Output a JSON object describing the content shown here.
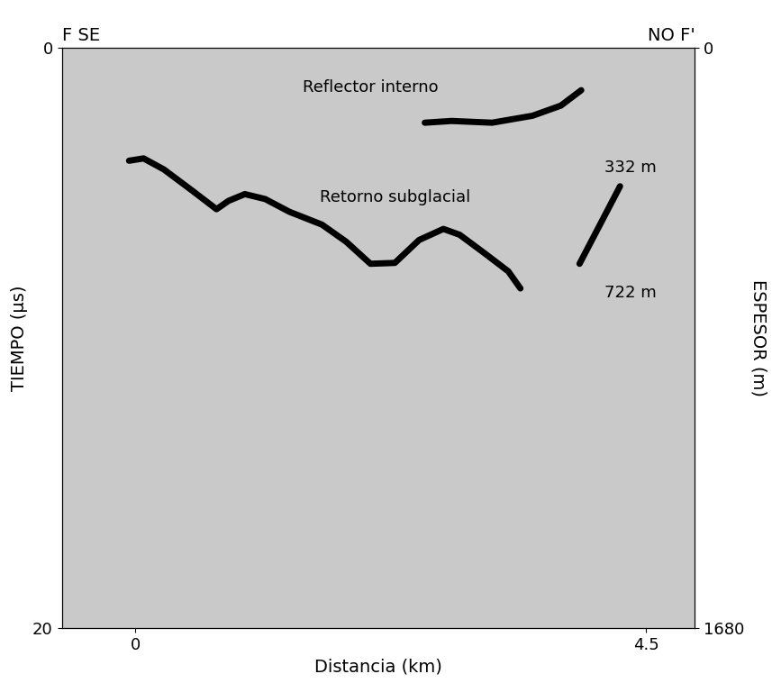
{
  "chart_data": {
    "type": "line",
    "left_title": "F SE",
    "right_title": "NO F'",
    "x_label": "Distancia (km)",
    "y_label": "TIEMPO (µs)",
    "y2_label": "ESPESOR (m)",
    "xlim": [
      -0.65,
      4.93
    ],
    "xticks": [
      0,
      4.5
    ],
    "ylim": [
      20,
      0
    ],
    "yticks": [
      0,
      20
    ],
    "y2lim": [
      1680,
      0
    ],
    "y2ticks": [
      0,
      1680
    ],
    "grid": false,
    "series": [
      {
        "color": "#000000",
        "x": [
          2.55,
          2.786,
          3.143,
          3.5,
          3.75,
          3.929
        ],
        "values": [
          2.58,
          2.52,
          2.58,
          2.34,
          1.99,
          1.46
        ]
      },
      {
        "color": "#000000",
        "x": [
          -0.057,
          0.071,
          0.25,
          0.5,
          0.714,
          0.821,
          0.964,
          1.143,
          1.357,
          1.643,
          1.857,
          2.071,
          2.286,
          2.5,
          2.714,
          2.857,
          3.071,
          3.286,
          3.393
        ],
        "values": [
          3.89,
          3.81,
          4.19,
          4.92,
          5.56,
          5.27,
          5.04,
          5.21,
          5.65,
          6.09,
          6.68,
          7.44,
          7.41,
          6.62,
          6.24,
          6.44,
          7.06,
          7.7,
          8.29
        ]
      },
      {
        "color": "#000000",
        "x": [
          3.914,
          4.271
        ],
        "values": [
          7.44,
          4.77
        ]
      }
    ],
    "annotations": [
      {
        "text": "Reflector interno",
        "x": 2.07,
        "y": 1.35
      },
      {
        "text": "Retorno subglacial",
        "x": 2.29,
        "y": 5.15
      },
      {
        "text": "332 m",
        "x": 4.36,
        "y": 4.13
      },
      {
        "text": "722 m",
        "x": 4.36,
        "y": 8.43
      }
    ]
  }
}
